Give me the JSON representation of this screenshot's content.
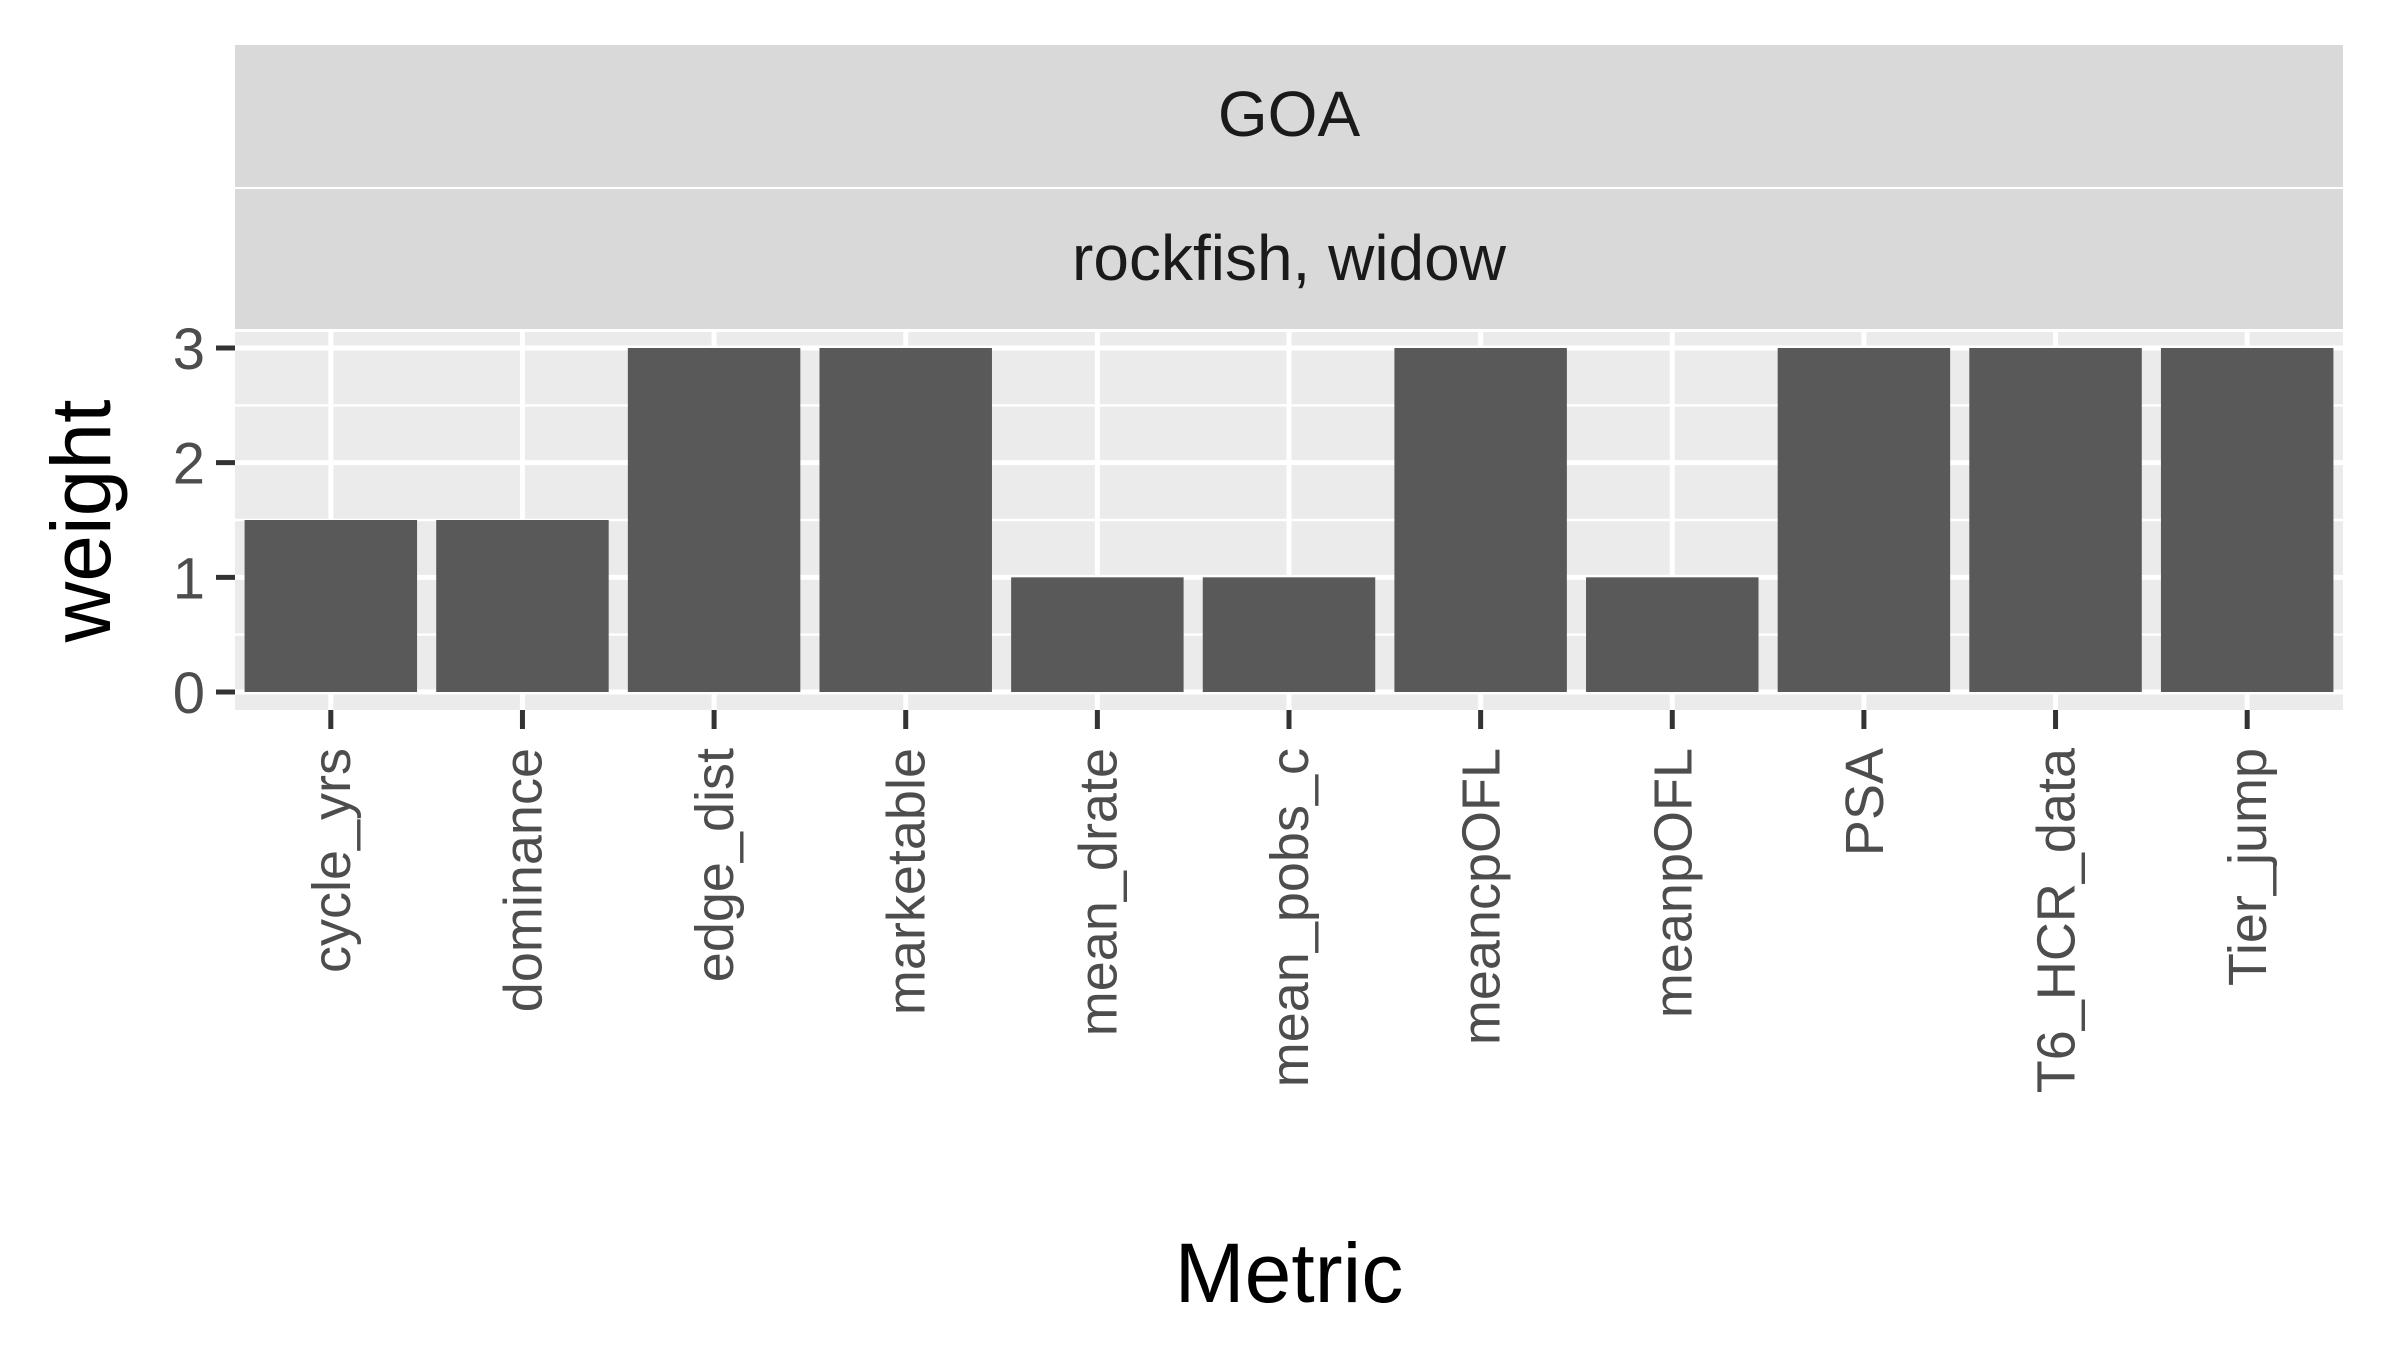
{
  "chart_data": {
    "type": "bar",
    "facet_labels": [
      "GOA",
      "rockfish, widow"
    ],
    "categories": [
      "cycle_yrs",
      "dominance",
      "edge_dist",
      "marketable",
      "mean_drate",
      "mean_pobs_c",
      "meancpOFL",
      "meanpOFL",
      "PSA",
      "T6_HCR_data",
      "Tier_jump"
    ],
    "values": [
      1.5,
      1.5,
      3,
      3,
      1,
      1,
      3,
      1,
      3,
      3,
      3
    ],
    "xlabel": "Metric",
    "ylabel": "weight",
    "ylim": [
      0,
      3.1
    ],
    "yticks": [
      0,
      1,
      2,
      3
    ],
    "grid": true,
    "colors": {
      "bar": "#595959",
      "panel": "#ebebeb",
      "strip": "#d9d9d9",
      "grid": "#ffffff",
      "tick_text": "#4d4d4d",
      "axis_title": "#000000",
      "strip_text": "#1a1a1a"
    }
  }
}
